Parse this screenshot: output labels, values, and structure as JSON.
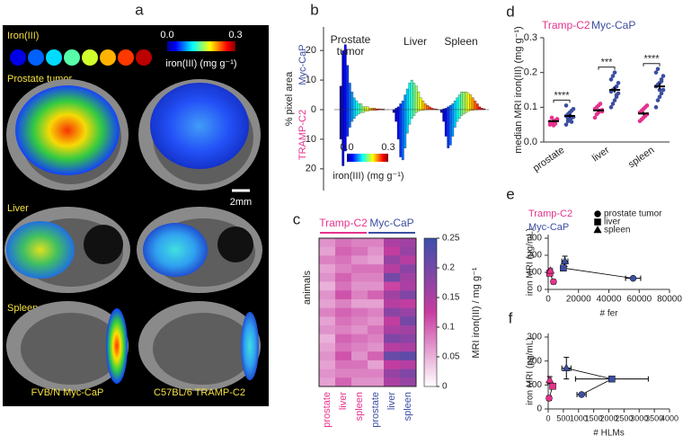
{
  "panel_labels": [
    "a",
    "b",
    "c",
    "d",
    "e",
    "f"
  ],
  "panel_a": {
    "legend_title": "Iron(III)",
    "colorbar": {
      "ticks": [
        {
          "value": 0,
          "label": "0.0"
        },
        {
          "value": 0.3,
          "label": "0.3"
        }
      ],
      "label": "iron(III) (mg g⁻¹)"
    },
    "rows": [
      "Prostate tumor",
      "Liver",
      "Spleen"
    ],
    "scale_bar": "2mm",
    "columns": [
      "FVB/N Myc-CaP",
      "C57BL/6 TRAMP-C2"
    ]
  },
  "chart_data": [
    {
      "type": "mirror-histogram",
      "ylabel": "% pixel area",
      "ylim": [
        -24,
        24
      ],
      "yticks": [
        20,
        10,
        0,
        {
          "value": -10,
          "label": "10"
        },
        {
          "value": -20,
          "label": "20"
        }
      ],
      "xlim": [
        0,
        0.3
      ],
      "bins": [
        0,
        0.015,
        0.03,
        0.045,
        0.06,
        0.075,
        0.09,
        0.105,
        0.12,
        0.135,
        0.15,
        0.165,
        0.18,
        0.195,
        0.21,
        0.225,
        0.24,
        0.255,
        0.27,
        0.285,
        0.3
      ],
      "series": [
        {
          "name": "Myc-CaP",
          "color": "#3c4ea0"
        },
        {
          "name": "TRAMP-C2",
          "color": "#e5338c"
        }
      ],
      "panels": [
        {
          "title": "Prostate tumor",
          "values": [
            [
              8,
              20,
              22,
              15,
              9,
              6,
              4,
              3,
              2,
              2,
              1,
              1,
              1,
              0.5,
              0.5,
              0.5,
              0.3,
              0.3,
              0.2,
              0.2
            ],
            [
              10,
              19,
              14,
              9,
              6,
              4,
              3,
              2,
              1.5,
              1,
              1,
              0.5,
              0.5,
              0.3,
              0.3,
              0.2,
              0.2,
              0.1,
              0.1,
              0.1
            ]
          ]
        },
        {
          "title": "Liver",
          "values": [
            [
              0,
              0.5,
              1,
              2,
              3,
              5,
              7,
              9,
              10,
              9,
              8,
              6,
              4,
              3,
              2,
              1.5,
              1,
              0.5,
              0.3,
              0.2
            ],
            [
              1,
              4,
              10,
              16,
              17,
              13,
              8,
              5,
              3,
              2,
              1,
              0.5,
              0.3,
              0.2,
              0.1,
              0.1,
              0,
              0,
              0,
              0
            ]
          ]
        },
        {
          "title": "Spleen",
          "values": [
            [
              0,
              0.3,
              0.5,
              1,
              1.5,
              2,
              3,
              4,
              5,
              6,
              6,
              6,
              5.5,
              5,
              4,
              3,
              2,
              1,
              0.5,
              0.3
            ],
            [
              1,
              4,
              9,
              13,
              12,
              9,
              6,
              4,
              3,
              2,
              1.5,
              1,
              0.5,
              0.3,
              0.2,
              0.1,
              0.1,
              0,
              0,
              0
            ]
          ]
        }
      ],
      "colorbar": {
        "ticks": [
          {
            "value": 0,
            "label": "0.0"
          },
          {
            "value": 0.3,
            "label": "0.3"
          }
        ],
        "label": "iron(III) (mg g⁻¹)"
      }
    },
    {
      "type": "heatmap",
      "ylabel": "animals",
      "groups": [
        {
          "name": "Tramp-C2",
          "color": "#e5338c"
        },
        {
          "name": "Myc-CaP",
          "color": "#3c4ea0"
        }
      ],
      "columns": [
        "prostate",
        "liver",
        "spleen",
        "prostate",
        "liver",
        "spleen"
      ],
      "column_groups": [
        0,
        0,
        0,
        1,
        1,
        1
      ],
      "zlim": [
        0,
        0.25
      ],
      "zticks": [
        0,
        0.05,
        0.1,
        0.15,
        0.2,
        0.25
      ],
      "zlabel": "MRI iron(III) / mg g⁻¹",
      "values": [
        [
          0.07,
          0.09,
          0.08,
          0.08,
          0.15,
          0.16
        ],
        [
          0.06,
          0.1,
          0.09,
          0.07,
          0.13,
          0.17
        ],
        [
          0.08,
          0.09,
          0.07,
          0.06,
          0.17,
          0.14
        ],
        [
          0.06,
          0.08,
          0.09,
          0.09,
          0.14,
          0.18
        ],
        [
          0.07,
          0.1,
          0.08,
          0.08,
          0.2,
          0.16
        ],
        [
          0.05,
          0.09,
          0.07,
          0.07,
          0.12,
          0.15
        ],
        [
          0.07,
          0.11,
          0.08,
          0.1,
          0.16,
          0.19
        ],
        [
          0.06,
          0.08,
          0.06,
          0.06,
          0.14,
          0.13
        ],
        [
          0.08,
          0.1,
          0.09,
          0.08,
          0.18,
          0.17
        ],
        [
          0.06,
          0.09,
          0.08,
          0.07,
          0.13,
          0.2
        ],
        [
          0.07,
          0.08,
          0.07,
          0.09,
          0.15,
          0.16
        ],
        [
          0.05,
          0.1,
          0.09,
          0.08,
          0.19,
          0.18
        ],
        [
          0.06,
          0.09,
          0.08,
          0.07,
          0.14,
          0.15
        ],
        [
          0.07,
          0.11,
          0.07,
          0.1,
          0.21,
          0.22
        ],
        [
          0.06,
          0.09,
          0.09,
          0.06,
          0.13,
          0.14
        ],
        [
          0.07,
          0.08,
          0.08,
          0.08,
          0.17,
          0.19
        ],
        [
          0.06,
          0.1,
          0.07,
          0.07,
          0.15,
          0.17
        ]
      ]
    },
    {
      "type": "dot",
      "ylabel": "median MRI iron(III) (mg g⁻¹)",
      "ylim": [
        0,
        0.3
      ],
      "yticks": [
        {
          "value": 0,
          "label": "0.0"
        },
        0.1,
        0.2,
        0.3
      ],
      "categories": [
        "prostate",
        "liver",
        "spleen"
      ],
      "annotations": [
        "****",
        "***",
        "****"
      ],
      "series": [
        {
          "name": "Tramp-C2",
          "color": "#e5338c",
          "values": [
            0.06,
            0.091,
            0.082
          ],
          "errors": [
            0.003,
            0.004,
            0.005
          ],
          "points": [
            [
              0.05,
              0.055,
              0.06,
              0.062,
              0.065,
              0.058,
              0.07,
              0.048,
              0.053,
              0.066
            ],
            [
              0.07,
              0.08,
              0.085,
              0.09,
              0.092,
              0.095,
              0.1,
              0.105,
              0.11,
              0.088
            ],
            [
              0.06,
              0.065,
              0.07,
              0.075,
              0.08,
              0.085,
              0.09,
              0.095,
              0.1,
              0.105
            ]
          ]
        },
        {
          "name": "Myc-CaP",
          "color": "#3c4ea0",
          "values": [
            0.075,
            0.15,
            0.16
          ],
          "errors": [
            0.005,
            0.008,
            0.009
          ],
          "points": [
            [
              0.05,
              0.06,
              0.065,
              0.07,
              0.072,
              0.075,
              0.08,
              0.085,
              0.09,
              0.095,
              0.105,
              0.068,
              0.078,
              0.058
            ],
            [
              0.1,
              0.11,
              0.12,
              0.13,
              0.14,
              0.145,
              0.15,
              0.155,
              0.16,
              0.17,
              0.18,
              0.19,
              0.2,
              0.135
            ],
            [
              0.1,
              0.12,
              0.13,
              0.14,
              0.15,
              0.16,
              0.165,
              0.17,
              0.18,
              0.19,
              0.2,
              0.21,
              0.15,
              0.175
            ]
          ]
        }
      ]
    },
    {
      "type": "scatter",
      "xlabel": "# fer",
      "ylabel": "iron MRI (µg/mL)",
      "xlim": [
        0,
        80000
      ],
      "xticks": [
        0,
        20000,
        40000,
        60000,
        80000
      ],
      "ylim": [
        0,
        300
      ],
      "yticks": [
        0,
        100,
        200,
        300
      ],
      "markers": [
        "circle",
        "square",
        "triangle"
      ],
      "legend": [
        "prostate tumor",
        "liver",
        "spleen"
      ],
      "series": [
        {
          "name": "Tramp-C2",
          "color": "#e5338c",
          "x": [
            3500,
            1000,
            1500
          ],
          "values": [
            45,
            95,
            110
          ],
          "xerr": [
            1500,
            400,
            500
          ],
          "yerr": [
            8,
            10,
            12
          ]
        },
        {
          "name": "Myc-CaP",
          "color": "#3c4ea0",
          "x": [
            56000,
            10000,
            11000
          ],
          "values": [
            65,
            125,
            165
          ],
          "xerr": [
            5000,
            1500,
            2000
          ],
          "yerr": [
            6,
            10,
            30
          ]
        }
      ]
    },
    {
      "type": "scatter",
      "xlabel": "# HLMs",
      "ylabel": "iron MRI (µg/mL)",
      "xlim": [
        0,
        4000
      ],
      "xticks": [
        0,
        500,
        1000,
        1500,
        2000,
        2500,
        3000,
        3500,
        4000
      ],
      "ylim": [
        0,
        300
      ],
      "yticks": [
        0,
        100,
        200,
        300
      ],
      "markers": [
        "circle",
        "square",
        "triangle"
      ],
      "series": [
        {
          "name": "Tramp-C2",
          "color": "#e5338c",
          "x": [
            30,
            150,
            50
          ],
          "values": [
            45,
            95,
            120
          ],
          "xerr": [
            20,
            60,
            40
          ],
          "yerr": [
            10,
            12,
            15
          ]
        },
        {
          "name": "Myc-CaP",
          "color": "#3c4ea0",
          "x": [
            1100,
            2100,
            600
          ],
          "values": [
            60,
            125,
            170
          ],
          "xerr": [
            150,
            1200,
            150
          ],
          "yerr": [
            6,
            8,
            45
          ]
        }
      ]
    }
  ]
}
